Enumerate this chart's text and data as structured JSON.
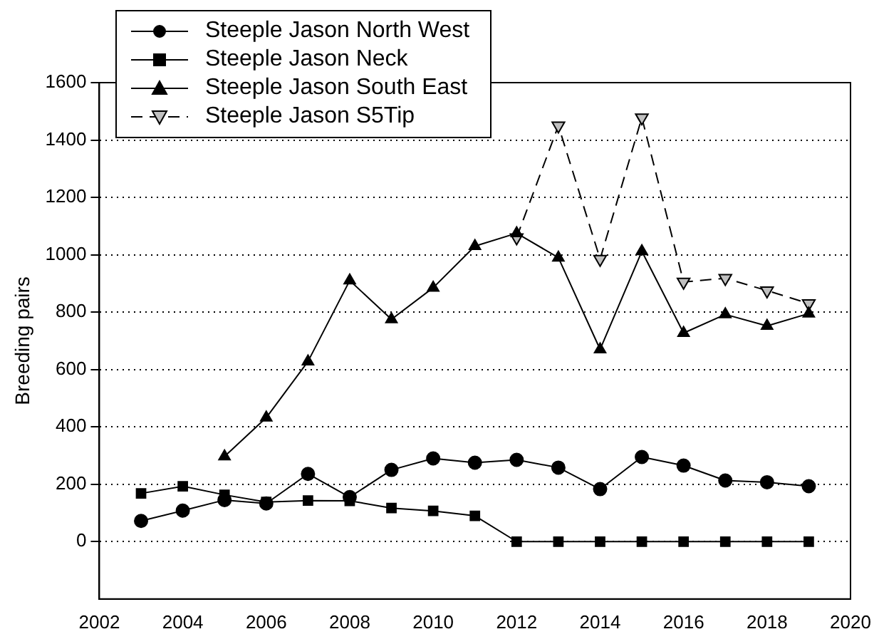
{
  "chart_data": {
    "type": "line",
    "ylabel": "Breeding pairs",
    "xlim": [
      2002,
      2020
    ],
    "xticks": [
      2002,
      2004,
      2006,
      2008,
      2010,
      2012,
      2014,
      2016,
      2018,
      2020
    ],
    "ylim": [
      -200,
      1600
    ],
    "yticks": [
      0,
      200,
      400,
      600,
      800,
      1000,
      1200,
      1400,
      1600
    ],
    "grid": "y",
    "legend": "top left",
    "series": [
      {
        "name": "Steeple Jason North West",
        "color": "#000000",
        "marker": "circle",
        "line_style": "solid",
        "x": [
          2003,
          2004,
          2005,
          2006,
          2007,
          2008,
          2009,
          2010,
          2011,
          2012,
          2013,
          2014,
          2015,
          2016,
          2017,
          2018,
          2019
        ],
        "values": [
          72,
          108,
          145,
          133,
          236,
          155,
          250,
          290,
          275,
          285,
          258,
          183,
          295,
          265,
          213,
          207,
          193
        ]
      },
      {
        "name": "Steeple Jason Neck",
        "color": "#000000",
        "marker": "square",
        "line_style": "solid",
        "x": [
          2003,
          2004,
          2005,
          2006,
          2007,
          2008,
          2009,
          2010,
          2011,
          2012,
          2013,
          2014,
          2015,
          2016,
          2017,
          2018,
          2019
        ],
        "values": [
          168,
          193,
          163,
          138,
          143,
          142,
          117,
          107,
          90,
          0,
          0,
          0,
          0,
          0,
          0,
          0,
          0
        ]
      },
      {
        "name": "Steeple Jason South East",
        "color": "#000000",
        "marker": "triangle",
        "line_style": "solid",
        "x": [
          2005,
          2006,
          2007,
          2008,
          2009,
          2010,
          2011,
          2012,
          2013,
          2014,
          2015,
          2016,
          2017,
          2018,
          2019
        ],
        "values": [
          297,
          432,
          628,
          910,
          775,
          885,
          1030,
          1075,
          990,
          670,
          1012,
          727,
          792,
          752,
          795
        ]
      },
      {
        "name": "Steeple Jason S5Tip",
        "color": "#c0c0c0",
        "marker": "triangle-down",
        "line_style": "dashed",
        "x": [
          2012,
          2013,
          2014,
          2015,
          2016,
          2017,
          2018,
          2019
        ],
        "values": [
          1060,
          1450,
          985,
          1478,
          905,
          918,
          875,
          830
        ]
      }
    ]
  }
}
